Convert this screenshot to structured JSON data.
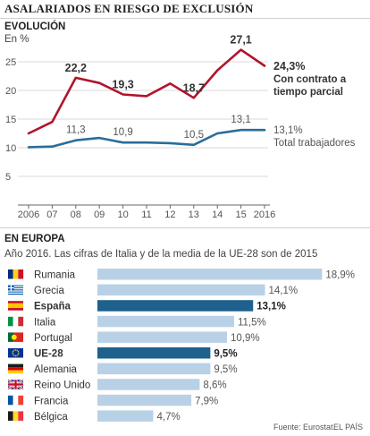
{
  "title": "ASALARIADOS EN RIESGO DE EXCLUSIÓN",
  "evolution": {
    "section_title": "EVOLUCIÓN",
    "unit_label": "En %"
  },
  "europe": {
    "section_title": "EN EUROPA",
    "subtitle": "Año 2016. Las cifras de Italia y de la media de la UE-28 son de 2015"
  },
  "footer": {
    "source": "Fuente: Eurostat.",
    "brand": "EL PAÍS"
  },
  "colors": {
    "red_series": "#b0152c",
    "blue_series": "#2a6d99",
    "bar_light": "#b9d1e6",
    "bar_dark": "#1e618c"
  },
  "chart_data": [
    {
      "type": "line",
      "x": [
        "2006",
        "07",
        "08",
        "09",
        "10",
        "11",
        "12",
        "13",
        "14",
        "15",
        "2016"
      ],
      "ylim": [
        0,
        30
      ],
      "yticks": [
        5,
        10,
        15,
        20,
        25
      ],
      "grid": true,
      "series": [
        {
          "name": "Con contrato a tiempo parcial",
          "color": "#b0152c",
          "values": [
            12.5,
            14.5,
            22.2,
            21.3,
            19.3,
            19.0,
            21.2,
            18.7,
            23.5,
            27.1,
            24.3
          ],
          "labels": [
            null,
            null,
            "22,2",
            null,
            "19,3",
            null,
            null,
            "18,7",
            null,
            "27,1",
            "24,3%"
          ],
          "end_label": [
            "Con contrato a",
            "tiempo parcial"
          ]
        },
        {
          "name": "Total trabajadores",
          "color": "#2a6d99",
          "values": [
            10.1,
            10.2,
            11.3,
            11.7,
            10.9,
            10.9,
            10.8,
            10.5,
            12.5,
            13.1,
            13.1
          ],
          "labels": [
            null,
            null,
            "11,3",
            null,
            "10,9",
            null,
            null,
            "10,5",
            null,
            "13,1",
            "13,1%"
          ],
          "end_label": [
            "Total trabajadores"
          ]
        }
      ]
    },
    {
      "type": "bar",
      "orientation": "horizontal",
      "xlim": [
        0,
        20
      ],
      "categories": [
        "Rumania",
        "Grecia",
        "España",
        "Italia",
        "Portugal",
        "UE-28",
        "Alemania",
        "Reino Unido",
        "Francia",
        "Bélgica"
      ],
      "values": [
        18.9,
        14.1,
        13.1,
        11.5,
        10.9,
        9.5,
        9.5,
        8.6,
        7.9,
        4.7
      ],
      "value_labels": [
        "18,9%",
        "14,1%",
        "13,1%",
        "11,5%",
        "10,9%",
        "9,5%",
        "9,5%",
        "8,6%",
        "7,9%",
        "4,7%"
      ],
      "highlight": [
        "España",
        "UE-28"
      ],
      "flags": [
        "romania",
        "greece",
        "spain",
        "italy",
        "portugal",
        "eu",
        "germany",
        "united-kingdom",
        "france",
        "belgium"
      ]
    }
  ]
}
